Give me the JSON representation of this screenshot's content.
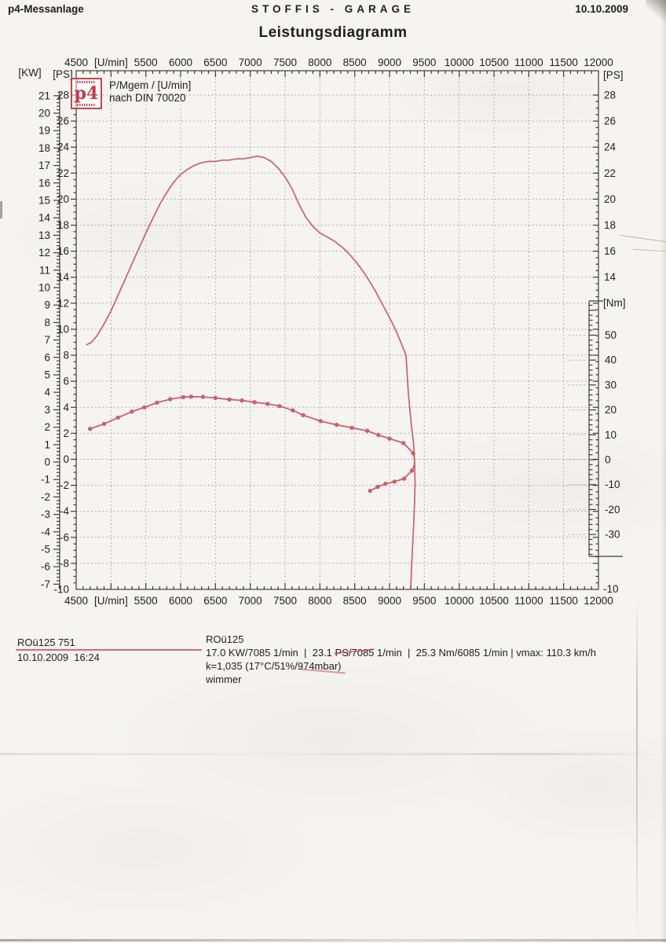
{
  "page": {
    "header_left": "p4-Messanlage",
    "header_center": "STOFFIS - GARAGE",
    "header_right": "10.10.2009",
    "title": "Leistungsdiagramm"
  },
  "legend": {
    "logo_text": "p4",
    "line1": "P/Mgem / [U/min]",
    "line2": "nach DIN 70020"
  },
  "axis_labels": {
    "kw": "[KW]",
    "ps_left": "[PS]",
    "ps_right_top": "[PS]",
    "nm": "[Nm]",
    "ps_right_bottom": "-10"
  },
  "ticks": {
    "rpm": [
      {
        "v": 4500,
        "t": "4500"
      },
      {
        "v": 5000,
        "t": "[U/min]"
      },
      {
        "v": 5500,
        "t": "5500"
      },
      {
        "v": 6000,
        "t": "6000"
      },
      {
        "v": 6500,
        "t": "6500"
      },
      {
        "v": 7000,
        "t": "7000"
      },
      {
        "v": 7500,
        "t": "7500"
      },
      {
        "v": 8000,
        "t": "8000"
      },
      {
        "v": 8500,
        "t": "8500"
      },
      {
        "v": 9000,
        "t": "9000"
      },
      {
        "v": 9500,
        "t": "9500"
      },
      {
        "v": 10000,
        "t": "10000"
      },
      {
        "v": 10500,
        "t": "10500"
      },
      {
        "v": 11000,
        "t": "11000"
      },
      {
        "v": 11500,
        "t": "11500"
      },
      {
        "v": 12000,
        "t": "12000"
      }
    ],
    "kw": [
      21,
      20,
      19,
      18,
      17,
      16,
      15,
      14,
      13,
      12,
      11,
      10,
      9,
      8,
      7,
      6,
      5,
      4,
      3,
      2,
      1,
      0,
      -1,
      -2,
      -3,
      -4,
      -5,
      -6,
      -7
    ],
    "ps_left": [
      28,
      26,
      24,
      22,
      20,
      18,
      16,
      14,
      12,
      10,
      8,
      6,
      4,
      2,
      0,
      -2,
      -4,
      -6,
      -8,
      -10
    ],
    "ps_right": [
      28,
      26,
      24,
      22,
      20,
      18,
      16,
      14
    ],
    "nm": [
      50,
      40,
      30,
      20,
      10,
      0,
      -10,
      -20,
      -30
    ]
  },
  "chart_data": {
    "type": "line",
    "title": "Leistungsdiagramm",
    "xlabel": "[U/min]",
    "x_range": [
      4500,
      12000
    ],
    "ps_range": [
      -10,
      28
    ],
    "kw_range": [
      -7,
      21
    ],
    "nm_tick_range": [
      -30,
      50
    ],
    "grid": {
      "style": "dotted",
      "x_lines": [
        5000,
        5500,
        6000,
        6500,
        7000,
        7500,
        8000,
        8500,
        9000,
        9500,
        10000,
        10500,
        11000,
        11500
      ],
      "y_lines_ps": [
        28,
        26,
        24,
        22,
        20,
        18,
        16,
        14,
        12,
        10,
        8,
        6,
        4,
        2,
        0,
        -2,
        -4,
        -6,
        -8
      ]
    },
    "series": [
      {
        "name": "P [PS]",
        "axis": "ps",
        "marker": false,
        "points": [
          [
            4650,
            8.8
          ],
          [
            4720,
            9.0
          ],
          [
            4800,
            9.5
          ],
          [
            4900,
            10.4
          ],
          [
            5000,
            11.4
          ],
          [
            5100,
            12.6
          ],
          [
            5200,
            13.8
          ],
          [
            5300,
            15.0
          ],
          [
            5400,
            16.2
          ],
          [
            5500,
            17.4
          ],
          [
            5600,
            18.5
          ],
          [
            5700,
            19.6
          ],
          [
            5800,
            20.5
          ],
          [
            5900,
            21.3
          ],
          [
            6000,
            21.9
          ],
          [
            6100,
            22.3
          ],
          [
            6200,
            22.6
          ],
          [
            6300,
            22.8
          ],
          [
            6400,
            22.9
          ],
          [
            6500,
            22.9
          ],
          [
            6600,
            23.0
          ],
          [
            6700,
            23.0
          ],
          [
            6800,
            23.1
          ],
          [
            6900,
            23.1
          ],
          [
            7000,
            23.2
          ],
          [
            7100,
            23.3
          ],
          [
            7200,
            23.2
          ],
          [
            7300,
            22.9
          ],
          [
            7400,
            22.4
          ],
          [
            7500,
            21.7
          ],
          [
            7600,
            20.8
          ],
          [
            7700,
            19.6
          ],
          [
            7800,
            18.6
          ],
          [
            7900,
            17.9
          ],
          [
            8000,
            17.4
          ],
          [
            8100,
            17.1
          ],
          [
            8200,
            16.8
          ],
          [
            8300,
            16.4
          ],
          [
            8400,
            15.9
          ],
          [
            8500,
            15.3
          ],
          [
            8600,
            14.6
          ],
          [
            8700,
            13.8
          ],
          [
            8800,
            12.9
          ],
          [
            8900,
            11.9
          ],
          [
            9000,
            10.9
          ],
          [
            9100,
            9.8
          ],
          [
            9200,
            8.5
          ],
          [
            9237,
            8.0
          ],
          [
            9270,
            5.1
          ],
          [
            9310,
            2.8
          ],
          [
            9345,
            1.2
          ],
          [
            9362,
            -0.5
          ],
          [
            9366,
            -1.8
          ],
          [
            9360,
            -3.2
          ],
          [
            9349,
            -4.8
          ],
          [
            9332,
            -6.6
          ],
          [
            9316,
            -8.4
          ],
          [
            9305,
            -10.0
          ]
        ],
        "peak": {
          "value_ps": 23.1,
          "rpm": 7085
        }
      },
      {
        "name": "Mgem [Nm]",
        "axis": "nm",
        "marker": true,
        "points": [
          [
            4700,
            12.4
          ],
          [
            4900,
            14.4
          ],
          [
            5100,
            16.9
          ],
          [
            5300,
            19.3
          ],
          [
            5480,
            21.0
          ],
          [
            5660,
            22.9
          ],
          [
            5850,
            24.3
          ],
          [
            6040,
            25.1
          ],
          [
            6150,
            25.3
          ],
          [
            6320,
            25.2
          ],
          [
            6500,
            24.8
          ],
          [
            6700,
            24.2
          ],
          [
            6880,
            23.8
          ],
          [
            7060,
            23.1
          ],
          [
            7250,
            22.4
          ],
          [
            7420,
            21.5
          ],
          [
            7610,
            19.8
          ],
          [
            7760,
            17.9
          ],
          [
            8010,
            15.5
          ],
          [
            8240,
            14.0
          ],
          [
            8460,
            12.8
          ],
          [
            8680,
            11.6
          ],
          [
            8840,
            9.9
          ],
          [
            9000,
            8.5
          ],
          [
            9200,
            6.7
          ],
          [
            9339,
            2.6
          ]
        ],
        "return_points": [
          [
            9320,
            -4.4
          ],
          [
            9210,
            -7.6
          ],
          [
            9070,
            -8.8
          ],
          [
            8940,
            -9.7
          ],
          [
            8830,
            -10.9
          ],
          [
            8720,
            -12.5
          ]
        ],
        "peak": {
          "value_nm": 25.3,
          "rpm": 6085
        }
      }
    ]
  },
  "footer": {
    "run_label": "ROü125 751",
    "run_datetime": "10.10.2009  16:24",
    "name": "ROü125",
    "results": "17.0 KW/7085 1/min  |  23.1 PS/7085 1/min  |  25.3 Nm/6085 1/min | vmax: 110.3 km/h",
    "correction": "k=1,035 (17°C/51%/974mbar)",
    "operator": "wimmer"
  },
  "colors": {
    "curve": "#cb5263",
    "grid": "#8e8e8e",
    "axis": "#3c3c3c",
    "text": "#1f1f1f",
    "logo_red": "#c23b46",
    "paper": "#f5f4f1"
  }
}
